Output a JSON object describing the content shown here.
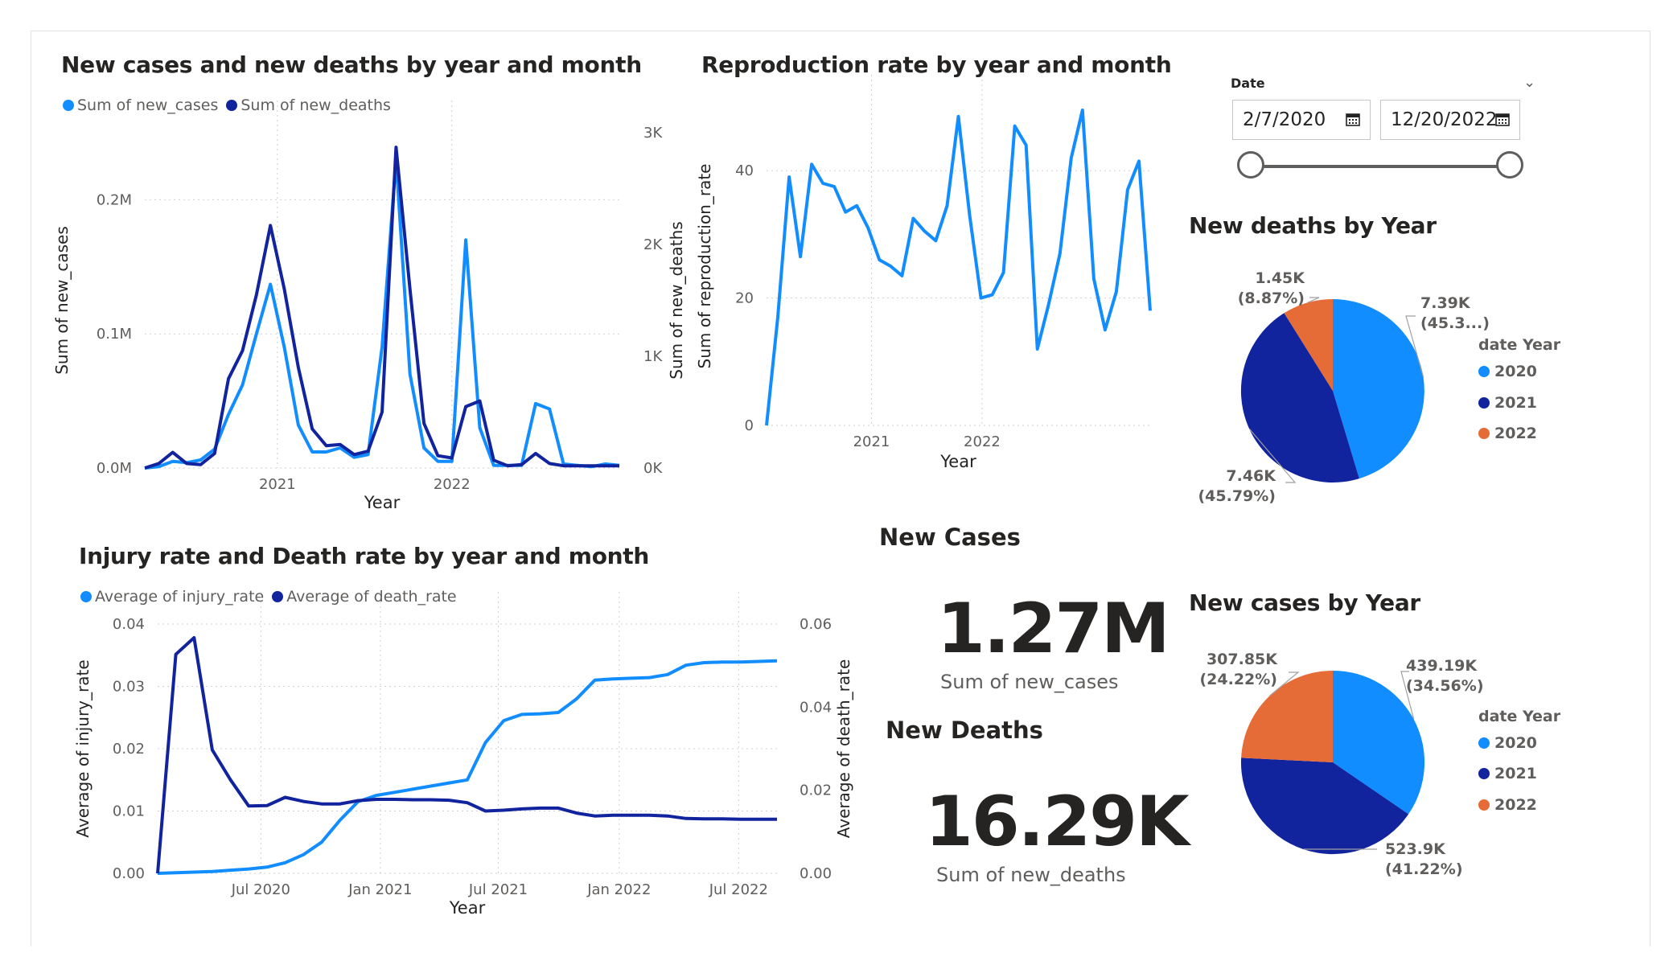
{
  "colors": {
    "light": "#118DFF",
    "dark": "#12239E",
    "orange": "#E66C37",
    "grid": "#d0d0d0",
    "axis": "#605e5c"
  },
  "chart_data": [
    {
      "id": "cases_deaths",
      "type": "line",
      "title": "New cases and new deaths by year and month",
      "xlabel": "Year",
      "ylabel": "Sum of new_cases",
      "ylabel2": "Sum of new_deaths",
      "xticks": [
        "2021",
        "2022"
      ],
      "yticks": [
        "0.0M",
        "0.1M",
        "0.2M"
      ],
      "yticks2": [
        "0K",
        "1K",
        "2K",
        "3K"
      ],
      "ylim": [
        0,
        250000
      ],
      "ylim2": [
        0,
        3000
      ],
      "series": [
        {
          "name": "Sum of new_cases",
          "axis": "left",
          "color": "#118DFF",
          "values": [
            0,
            1000,
            5000,
            4000,
            6000,
            14000,
            40000,
            62000,
            100000,
            137000,
            90000,
            32000,
            12000,
            12000,
            15000,
            8000,
            10000,
            90000,
            230000,
            70000,
            15000,
            5000,
            5000,
            170000,
            30000,
            2000,
            2000,
            2000,
            48000,
            44000,
            3000,
            2000,
            1000,
            3000,
            2000
          ]
        },
        {
          "name": "Sum of new_deaths",
          "axis": "right",
          "color": "#12239E",
          "values": [
            0,
            40,
            140,
            40,
            30,
            130,
            800,
            1050,
            1550,
            2170,
            1600,
            900,
            350,
            200,
            210,
            120,
            150,
            500,
            2870,
            1600,
            400,
            110,
            90,
            550,
            600,
            70,
            20,
            30,
            130,
            40,
            20,
            20,
            20,
            20,
            20
          ]
        }
      ]
    },
    {
      "id": "repro",
      "type": "line",
      "title": "Reproduction rate by year and month",
      "xlabel": "Year",
      "ylabel": "Sum of reproduction_rate",
      "xticks": [
        "2021",
        "2022"
      ],
      "yticks": [
        "0",
        "20",
        "40"
      ],
      "ylim": [
        0,
        50
      ],
      "series": [
        {
          "name": "",
          "color": "#118DFF",
          "values": [
            0,
            17,
            39,
            26.5,
            41,
            38,
            37.5,
            33.5,
            34.5,
            31,
            26,
            25,
            23.5,
            32.5,
            30.5,
            29,
            34.5,
            48.5,
            33,
            20,
            20.5,
            24,
            47,
            44,
            12,
            19,
            27,
            42,
            49.5,
            23,
            15,
            21,
            37,
            41.5,
            18
          ]
        }
      ]
    },
    {
      "id": "rates",
      "type": "line",
      "title": "Injury rate and Death rate by year and month",
      "xlabel": "Year",
      "ylabel": "Average of injury_rate",
      "ylabel2": "Average of death_rate",
      "xticks": [
        "Jul 2020",
        "Jan 2021",
        "Jul 2021",
        "Jan 2022",
        "Jul 2022"
      ],
      "yticks": [
        "0.00",
        "0.01",
        "0.02",
        "0.03",
        "0.04"
      ],
      "yticks2": [
        "0.00",
        "0.02",
        "0.04",
        "0.06"
      ],
      "ylim": [
        0,
        0.04
      ],
      "ylim2": [
        0,
        0.06
      ],
      "series": [
        {
          "name": "Average of injury_rate",
          "axis": "left",
          "color": "#118DFF",
          "values": [
            0.0,
            0.0001,
            0.0002,
            0.0003,
            0.0005,
            0.0007,
            0.001,
            0.0017,
            0.003,
            0.005,
            0.0085,
            0.0115,
            0.0125,
            0.013,
            0.0135,
            0.014,
            0.0145,
            0.015,
            0.021,
            0.0245,
            0.0255,
            0.0256,
            0.0258,
            0.028,
            0.031,
            0.0312,
            0.0313,
            0.0314,
            0.0319,
            0.0334,
            0.0338,
            0.0339,
            0.0339,
            0.034,
            0.0341
          ]
        },
        {
          "name": "Average of death_rate",
          "axis": "right",
          "color": "#12239E",
          "values": [
            0.0,
            0.0527,
            0.0567,
            0.0297,
            0.0225,
            0.0162,
            0.0163,
            0.0183,
            0.0173,
            0.0167,
            0.0167,
            0.0175,
            0.0178,
            0.0178,
            0.0177,
            0.0177,
            0.0176,
            0.017,
            0.015,
            0.0152,
            0.0155,
            0.0157,
            0.0157,
            0.0145,
            0.0138,
            0.014,
            0.014,
            0.014,
            0.0138,
            0.0132,
            0.0131,
            0.0131,
            0.013,
            0.013,
            0.013
          ]
        }
      ]
    },
    {
      "id": "deaths_pie",
      "type": "pie",
      "title": "New deaths by Year",
      "legend_title": "date Year",
      "slices": [
        {
          "label": "2020",
          "value": 7390,
          "text": "7.39K",
          "pct": "(45.3...)",
          "color": "#118DFF"
        },
        {
          "label": "2021",
          "value": 7460,
          "text": "7.46K",
          "pct": "(45.79%)",
          "color": "#12239E"
        },
        {
          "label": "2022",
          "value": 1450,
          "text": "1.45K",
          "pct": "(8.87%)",
          "color": "#E66C37"
        }
      ]
    },
    {
      "id": "cases_pie",
      "type": "pie",
      "title": "New cases by Year",
      "legend_title": "date Year",
      "slices": [
        {
          "label": "2020",
          "value": 439190,
          "text": "439.19K",
          "pct": "(34.56%)",
          "color": "#118DFF"
        },
        {
          "label": "2021",
          "value": 523900,
          "text": "523.9K",
          "pct": "(41.22%)",
          "color": "#12239E"
        },
        {
          "label": "2022",
          "value": 307850,
          "text": "307.85K",
          "pct": "(24.22%)",
          "color": "#E66C37"
        }
      ]
    }
  ],
  "cards": {
    "cases": {
      "title": "New Cases",
      "value": "1.27M",
      "label": "Sum of new_cases"
    },
    "deaths": {
      "title": "New Deaths",
      "value": "16.29K",
      "label": "Sum of new_deaths"
    }
  },
  "slicer": {
    "title": "Date",
    "start": "2/7/2020",
    "end": "12/20/2022"
  }
}
